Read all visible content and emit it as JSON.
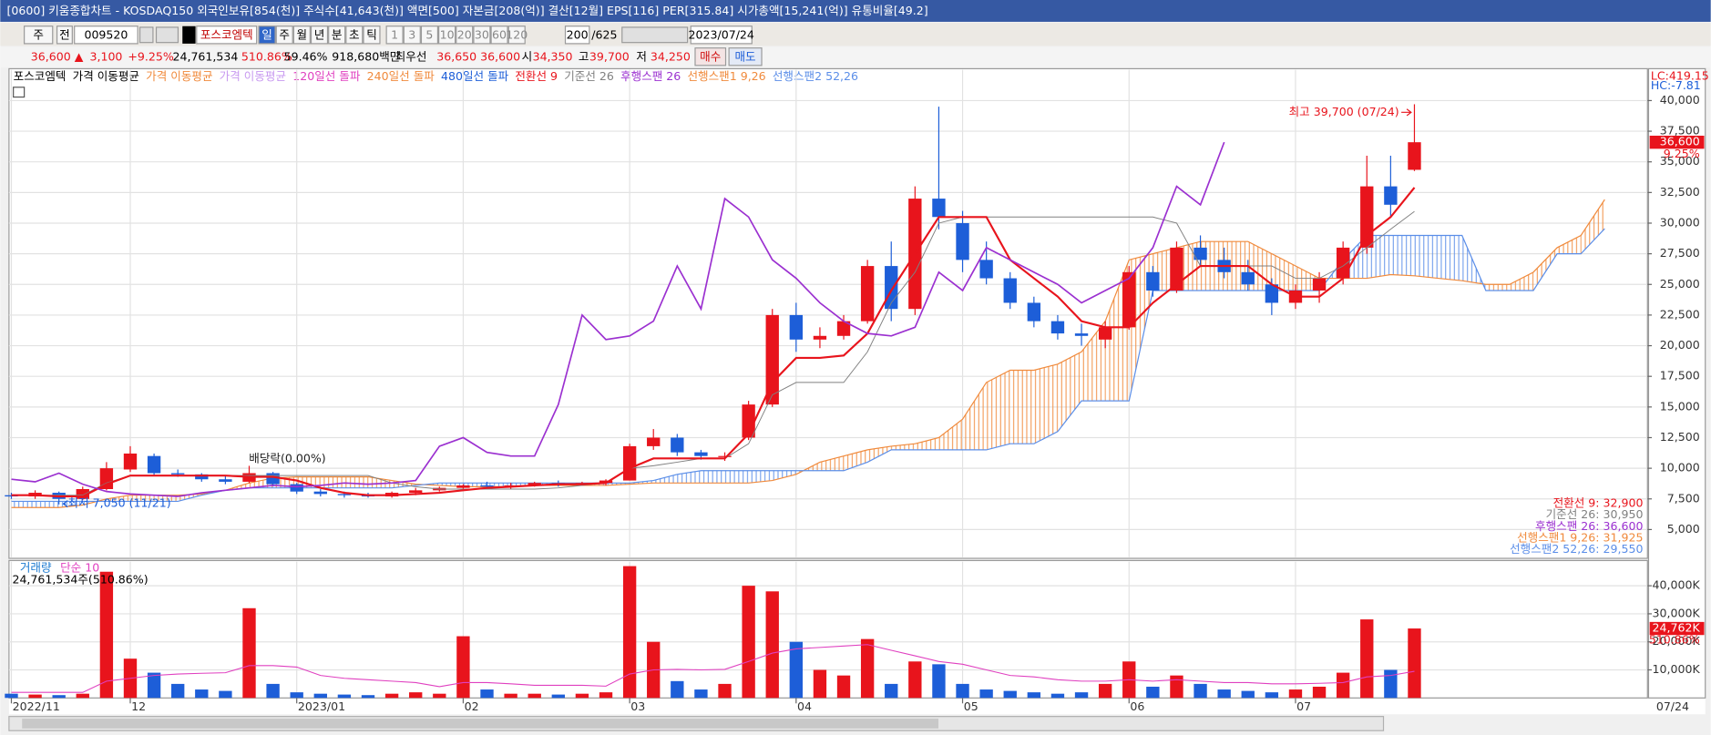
{
  "window": {
    "title": "[0600] 키움종합차트 - KOSDAQ150 외국인보유[854(천)] 주식수[41,643(천)] 액면[500] 자본금[208(억)] 결산[12월] EPS[116] PER[315.84] 시가총액[15,241(억)] 유통비율[49.2]"
  },
  "toolbar": {
    "mode": "주",
    "prev": "전",
    "code": "009520",
    "name": "포스코엠텍",
    "periods": [
      "일",
      "주",
      "월",
      "년",
      "분",
      "초",
      "틱"
    ],
    "intervals": [
      "1",
      "3",
      "5",
      "10",
      "20",
      "30",
      "60",
      "120"
    ],
    "count": "200",
    "total": "/625",
    "date": "2023/07/24"
  },
  "quote": {
    "price": "36,600 ▲",
    "change": "3,100",
    "rate": "+9.25%",
    "volume": "24,761,534",
    "volume_ratio": "510.86%",
    "turnover": "59.46%",
    "amount": "918,680백만",
    "best_label": "최우선",
    "ask": "36,650",
    "bid": "36,600",
    "open_label": "시",
    "open": "34,350",
    "high_label": "고",
    "high": "39,700",
    "low_label": "저",
    "low": "34,250",
    "buy": "매수",
    "sell": "매도"
  },
  "indicator_bar": {
    "stock": "포스코엠텍",
    "ma_labels": [
      "가격 이동평균",
      "가격 이동평균",
      "가격 이동평균"
    ],
    "breakouts": [
      "120일선 돌파",
      "240일선 돌파",
      "480일선 돌파"
    ],
    "scale_info": [
      "LC:419.15",
      "HC:-7.81"
    ]
  },
  "chart_data": [
    {
      "type": "candlestick",
      "open": [
        7800,
        7700,
        8000,
        7500,
        8300,
        9900,
        11000,
        9600,
        9500,
        9100,
        8900,
        9600,
        8700,
        8100,
        7900,
        7800,
        7700,
        8000,
        8200,
        8400,
        8600,
        8500,
        8600,
        8800,
        8700,
        8800,
        9000,
        11800,
        12500,
        11300,
        11000,
        12500,
        15200,
        22500,
        20500,
        20800,
        22000,
        26500,
        23000,
        32000,
        30000,
        27000,
        25500,
        23500,
        22000,
        21000,
        20500,
        21500,
        26000,
        24500,
        28000,
        27000,
        26000,
        25000,
        23500,
        24500,
        25500,
        28000,
        33000,
        34350
      ],
      "high": [
        8000,
        8200,
        8100,
        8500,
        10500,
        11800,
        11200,
        9900,
        9600,
        9400,
        10200,
        9700,
        8800,
        8300,
        8100,
        8000,
        8100,
        8400,
        8500,
        8700,
        8900,
        8800,
        8900,
        9000,
        8900,
        9100,
        12000,
        13200,
        12800,
        11500,
        11300,
        15500,
        23000,
        23500,
        21500,
        22500,
        27000,
        28500,
        33000,
        39500,
        31000,
        28500,
        26000,
        24000,
        22500,
        21800,
        22000,
        26500,
        26500,
        28500,
        29000,
        28000,
        27000,
        25500,
        25000,
        26000,
        28500,
        35500,
        35500,
        39700
      ],
      "low": [
        7500,
        7500,
        7050,
        7400,
        8200,
        9700,
        9400,
        9300,
        8900,
        8700,
        8800,
        8500,
        7900,
        7700,
        7600,
        7600,
        7600,
        7800,
        8100,
        8200,
        8400,
        8300,
        8500,
        8500,
        8600,
        8600,
        9000,
        11500,
        11000,
        10700,
        10600,
        12300,
        15000,
        19500,
        19800,
        20500,
        21800,
        22000,
        22500,
        29500,
        26000,
        25000,
        23000,
        21500,
        20500,
        20000,
        19800,
        21300,
        24000,
        24300,
        26500,
        25500,
        24500,
        22500,
        23000,
        23500,
        25000,
        27500,
        30500,
        34250
      ],
      "close": [
        7700,
        8000,
        7500,
        8300,
        10000,
        11200,
        9600,
        9500,
        9100,
        8900,
        9600,
        8700,
        8100,
        7900,
        7800,
        7700,
        8000,
        8200,
        8400,
        8600,
        8500,
        8600,
        8800,
        8700,
        8800,
        9000,
        11800,
        12500,
        11300,
        11000,
        11000,
        15200,
        22500,
        20500,
        20800,
        22000,
        26500,
        23000,
        32000,
        30500,
        27000,
        25500,
        23500,
        22000,
        21000,
        20800,
        21500,
        26000,
        24500,
        28000,
        27000,
        26000,
        25000,
        23500,
        24500,
        25500,
        28000,
        33000,
        31500,
        36600
      ],
      "up_color": "#e8141c",
      "down_color": "#1d5ed8",
      "series": [
        {
          "name": "전환선 9",
          "color": "#e8141c",
          "values": [
            7800,
            7800,
            7700,
            7700,
            8700,
            9400,
            9400,
            9400,
            9400,
            9400,
            9300,
            9300,
            9000,
            8400,
            8000,
            7800,
            7800,
            7900,
            8000,
            8200,
            8400,
            8500,
            8600,
            8700,
            8700,
            8800,
            10000,
            10800,
            10800,
            10800,
            10800,
            12800,
            17000,
            19000,
            19000,
            19200,
            21000,
            24500,
            27500,
            30500,
            30500,
            30500,
            27000,
            25500,
            24000,
            22000,
            21500,
            21500,
            23500,
            25000,
            26500,
            26500,
            26500,
            25000,
            24000,
            24000,
            25500,
            29000,
            30500,
            32900
          ]
        },
        {
          "name": "기준선 26",
          "color": "#808080",
          "values": [
            7800,
            7800,
            7800,
            7800,
            8800,
            9400,
            9400,
            9400,
            9400,
            9400,
            9400,
            9400,
            9400,
            9400,
            9400,
            9400,
            8800,
            8500,
            8300,
            8300,
            8300,
            8300,
            8300,
            8400,
            8600,
            8800,
            10000,
            10200,
            10500,
            10800,
            10800,
            12000,
            16000,
            17000,
            17000,
            17000,
            19500,
            23500,
            26000,
            30000,
            30500,
            30500,
            30500,
            30500,
            30500,
            30500,
            30500,
            30500,
            30500,
            30000,
            26500,
            26500,
            26500,
            26500,
            25500,
            25500,
            26500,
            28000,
            29500,
            30950
          ]
        },
        {
          "name": "후행스팬 26",
          "color": "#9b30d0",
          "values": [
            9100,
            8900,
            9600,
            8700,
            8100,
            7900,
            7800,
            7700,
            8000,
            8200,
            8400,
            8600,
            8500,
            8600,
            8800,
            8700,
            8800,
            9000,
            11800,
            12500,
            11300,
            11000,
            11000,
            15200,
            22500,
            20500,
            20800,
            22000,
            26500,
            23000,
            32000,
            30500,
            27000,
            25500,
            23500,
            22000,
            21000,
            20800,
            21500,
            26000,
            24500,
            28000,
            27000,
            26000,
            25000,
            23500,
            24500,
            25500,
            28000,
            33000,
            31500,
            36600,
            null,
            null,
            null,
            null,
            null,
            null,
            null,
            null
          ]
        },
        {
          "name": "선행스팬1 9,26",
          "color": "#f08a3c",
          "values": [
            6800,
            6800,
            6800,
            7000,
            7500,
            7800,
            7800,
            7800,
            7900,
            8200,
            8800,
            9200,
            9300,
            9300,
            9300,
            9300,
            9000,
            8700,
            8600,
            8500,
            8500,
            8500,
            8600,
            8600,
            8600,
            8600,
            8700,
            8800,
            8800,
            8800,
            8800,
            8800,
            9000,
            9500,
            10500,
            11000,
            11500,
            11800,
            12000,
            12500,
            14000,
            17000,
            18000,
            18000,
            18500,
            19500,
            22000,
            27000,
            27500,
            28000,
            28500,
            28500,
            28500,
            27500,
            26500,
            25500,
            25500,
            25500,
            25800,
            25700,
            25500,
            25300,
            25000,
            25000,
            26000,
            28000,
            29000,
            31925
          ]
        },
        {
          "name": "선행스팬2 52,26",
          "color": "#5b8ee8",
          "values": [
            7300,
            7300,
            7300,
            7300,
            7300,
            7300,
            7300,
            7300,
            7800,
            8200,
            8400,
            8400,
            8400,
            8400,
            8400,
            8400,
            8400,
            8600,
            8800,
            8800,
            8800,
            8800,
            8800,
            8800,
            8800,
            8800,
            8800,
            9000,
            9500,
            9800,
            9800,
            9800,
            9800,
            9800,
            9800,
            9800,
            10500,
            11500,
            11500,
            11500,
            11500,
            11500,
            12000,
            12000,
            13000,
            15500,
            15500,
            15500,
            24500,
            24500,
            24500,
            24500,
            24500,
            24500,
            24500,
            24500,
            27000,
            29000,
            29000,
            29000,
            29000,
            29000,
            24500,
            24500,
            24500,
            27500,
            27500,
            29550
          ]
        }
      ],
      "legend_labels": [
        "전환선 9: 32,900",
        "기준선 26: 30,950",
        "후행스팬 26: 36,600",
        "선행스팬1 9,26: 31,925",
        "선행스팬2 52,26: 29,550"
      ],
      "annotations": [
        "최고 39,700 (07/24)",
        "최저 7,050 (11/21)",
        "배당락(0.00%)"
      ],
      "last_price": "36,600",
      "last_rate": "9.25%",
      "xlim": [
        -0.1,
        68.8
      ],
      "ylim": [
        2650,
        42600
      ],
      "yticks": [
        {
          "value": 5000,
          "label": "5,000"
        },
        {
          "value": 7500,
          "label": "7,500"
        },
        {
          "value": 10000,
          "label": "10,000"
        },
        {
          "value": 12500,
          "label": "12,500"
        },
        {
          "value": 15000,
          "label": "15,000"
        },
        {
          "value": 17500,
          "label": "17,500"
        },
        {
          "value": 20000,
          "label": "20,000"
        },
        {
          "value": 22500,
          "label": "22,500"
        },
        {
          "value": 25000,
          "label": "25,000"
        },
        {
          "value": 27500,
          "label": "27,500"
        },
        {
          "value": 30000,
          "label": "30,000"
        },
        {
          "value": 32500,
          "label": "32,500"
        },
        {
          "value": 35000,
          "label": "35,000"
        },
        {
          "value": 37500,
          "label": "37,500"
        },
        {
          "value": 40000,
          "label": "40,000"
        }
      ],
      "grid": true
    },
    {
      "type": "bar",
      "series": [
        {
          "name": "거래량",
          "color": "#1b7ad0",
          "values": [
            1500,
            1200,
            1000,
            1500,
            45000,
            14000,
            9000,
            5000,
            3000,
            2500,
            32000,
            5000,
            2000,
            1500,
            1200,
            1000,
            1500,
            2000,
            1500,
            22000,
            3000,
            1500,
            1500,
            1200,
            1500,
            2000,
            47000,
            20000,
            6000,
            3000,
            5000,
            40000,
            38000,
            20000,
            10000,
            8000,
            21000,
            5000,
            13000,
            12000,
            5000,
            3000,
            2500,
            2000,
            1500,
            2000,
            5000,
            13000,
            4000,
            8000,
            5000,
            3000,
            2500,
            2000,
            3000,
            4000,
            9000,
            28000,
            10000,
            24762
          ]
        },
        {
          "name": "단순 10",
          "color": "#e040c0",
          "values": [
            2000,
            2000,
            2000,
            2000,
            6000,
            7000,
            8000,
            8500,
            8800,
            9000,
            11500,
            11500,
            11000,
            8000,
            7000,
            6500,
            6000,
            5500,
            4000,
            5500,
            5500,
            5000,
            4500,
            4500,
            4500,
            4200,
            8500,
            10000,
            10200,
            10000,
            10200,
            13000,
            16000,
            17500,
            18000,
            18500,
            19000,
            17000,
            15000,
            13000,
            12000,
            10000,
            8000,
            7500,
            6500,
            6000,
            6000,
            6500,
            6000,
            6500,
            6000,
            5500,
            5500,
            5000,
            5000,
            5200,
            5500,
            7500,
            8000,
            9500
          ]
        }
      ],
      "label": "24,761,534주(510.86%)",
      "last_label": "24,762K",
      "last_rate": "510.86%",
      "xlim": [
        -0.1,
        68.8
      ],
      "ylim": [
        0,
        49000
      ],
      "yticks": [
        {
          "value": 10000,
          "label": "10,000K"
        },
        {
          "value": 20000,
          "label": "20,000K"
        },
        {
          "value": 30000,
          "label": "30,000K"
        },
        {
          "value": 40000,
          "label": "40,000K"
        }
      ],
      "xticks": [
        {
          "value": 0,
          "label": "2022/11"
        },
        {
          "value": 5,
          "label": "12"
        },
        {
          "value": 12,
          "label": "2023/01"
        },
        {
          "value": 19,
          "label": "02"
        },
        {
          "value": 26,
          "label": "03"
        },
        {
          "value": 33,
          "label": "04"
        },
        {
          "value": 40,
          "label": "05"
        },
        {
          "value": 47,
          "label": "06"
        },
        {
          "value": 54,
          "label": "07"
        }
      ],
      "end_label": "07/24",
      "grid": true
    }
  ]
}
